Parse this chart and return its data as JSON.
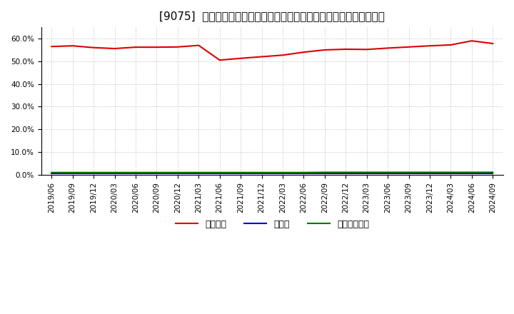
{
  "title": "[9075]  自己資本、のれん、繰延税金資産の総資産に対する比率の推移",
  "x_labels": [
    "2019/06",
    "2019/09",
    "2019/12",
    "2020/03",
    "2020/06",
    "2020/09",
    "2020/12",
    "2021/03",
    "2021/06",
    "2021/09",
    "2021/12",
    "2022/03",
    "2022/06",
    "2022/09",
    "2022/12",
    "2023/03",
    "2023/06",
    "2023/09",
    "2023/12",
    "2024/03",
    "2024/06",
    "2024/09"
  ],
  "equity_ratio": [
    0.565,
    0.568,
    0.56,
    0.556,
    0.562,
    0.562,
    0.563,
    0.57,
    0.505,
    0.513,
    0.52,
    0.527,
    0.54,
    0.55,
    0.553,
    0.552,
    0.558,
    0.563,
    0.568,
    0.572,
    0.59,
    0.578
  ],
  "goodwill_ratio": [
    0.007,
    0.007,
    0.007,
    0.007,
    0.007,
    0.007,
    0.007,
    0.007,
    0.007,
    0.007,
    0.007,
    0.007,
    0.007,
    0.007,
    0.007,
    0.007,
    0.007,
    0.007,
    0.007,
    0.007,
    0.007,
    0.007
  ],
  "deferred_tax_ratio": [
    0.01,
    0.01,
    0.01,
    0.01,
    0.01,
    0.01,
    0.01,
    0.01,
    0.01,
    0.01,
    0.01,
    0.01,
    0.01,
    0.011,
    0.011,
    0.011,
    0.011,
    0.011,
    0.011,
    0.011,
    0.011,
    0.011
  ],
  "equity_color": "#dd0000",
  "goodwill_color": "#0000cc",
  "deferred_tax_color": "#007700",
  "bg_color": "#ffffff",
  "plot_bg_color": "#ffffff",
  "grid_color": "#bbbbbb",
  "legend_labels": [
    "自己資本",
    "のれん",
    "繰延税金資産"
  ],
  "ylim": [
    0.0,
    0.65
  ],
  "yticks": [
    0.0,
    0.1,
    0.2,
    0.3,
    0.4,
    0.5,
    0.6
  ],
  "title_fontsize": 11,
  "tick_fontsize": 7.5,
  "legend_fontsize": 9
}
